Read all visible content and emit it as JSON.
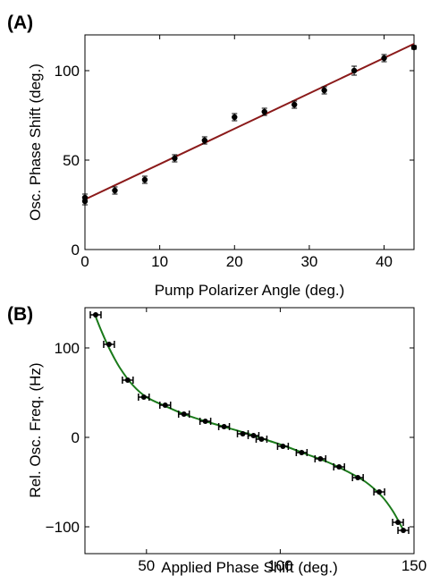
{
  "chart_data": [
    {
      "panel_label": "(A)",
      "type": "scatter",
      "xlabel": "Pump Polarizer Angle (deg.)",
      "ylabel": "Osc. Phase Shift (deg.)",
      "xlim": [
        0,
        44
      ],
      "ylim": [
        0,
        120
      ],
      "xticks": [
        0,
        10,
        20,
        30,
        40
      ],
      "yticks": [
        0,
        50,
        100
      ],
      "grid": false,
      "series": [
        {
          "kind": "points_with_y_errorbars",
          "color": "#000000",
          "points": [
            {
              "x": 0,
              "y": 27,
              "err": 2
            },
            {
              "x": 0,
              "y": 29,
              "err": 2
            },
            {
              "x": 4,
              "y": 33,
              "err": 2
            },
            {
              "x": 8,
              "y": 39,
              "err": 2
            },
            {
              "x": 12,
              "y": 51,
              "err": 2
            },
            {
              "x": 16,
              "y": 61,
              "err": 2
            },
            {
              "x": 20,
              "y": 74,
              "err": 2
            },
            {
              "x": 24,
              "y": 77,
              "err": 2
            },
            {
              "x": 28,
              "y": 81,
              "err": 2
            },
            {
              "x": 32,
              "y": 89,
              "err": 2
            },
            {
              "x": 36,
              "y": 100,
              "err": 2.5
            },
            {
              "x": 40,
              "y": 107,
              "err": 2
            },
            {
              "x": 44,
              "y": 113,
              "err": 1
            }
          ]
        },
        {
          "kind": "fit_line",
          "color": "#8b1a1a",
          "x": [
            0,
            44
          ],
          "y": [
            28,
            115
          ]
        }
      ]
    },
    {
      "panel_label": "(B)",
      "type": "scatter",
      "xlabel": "Applied Phase Shift (deg.)",
      "ylabel": "Rel. Osc. Freq. (Hz)",
      "xlim": [
        27,
        150
      ],
      "ylim": [
        -130,
        145
      ],
      "xticks": [
        50,
        100,
        150
      ],
      "yticks": [
        -100,
        0,
        100
      ],
      "grid": false,
      "series": [
        {
          "kind": "points_with_x_errorbars",
          "color": "#000000",
          "points": [
            {
              "x": 31,
              "y": 137,
              "err": 2
            },
            {
              "x": 36,
              "y": 104,
              "err": 2
            },
            {
              "x": 43,
              "y": 64,
              "err": 2
            },
            {
              "x": 49,
              "y": 45,
              "err": 2
            },
            {
              "x": 57,
              "y": 36,
              "err": 2
            },
            {
              "x": 64,
              "y": 26,
              "err": 2
            },
            {
              "x": 72,
              "y": 18,
              "err": 2
            },
            {
              "x": 79,
              "y": 12,
              "err": 2
            },
            {
              "x": 86,
              "y": 4,
              "err": 2
            },
            {
              "x": 90,
              "y": 2,
              "err": 2
            },
            {
              "x": 93,
              "y": -2,
              "err": 2
            },
            {
              "x": 101,
              "y": -10,
              "err": 2
            },
            {
              "x": 108,
              "y": -17,
              "err": 2
            },
            {
              "x": 115,
              "y": -24,
              "err": 2
            },
            {
              "x": 122,
              "y": -33,
              "err": 2
            },
            {
              "x": 129,
              "y": -45,
              "err": 2
            },
            {
              "x": 137,
              "y": -61,
              "err": 2
            },
            {
              "x": 144,
              "y": -95,
              "err": 2
            },
            {
              "x": 146,
              "y": -104,
              "err": 2
            }
          ]
        },
        {
          "kind": "fit_curve",
          "color": "#1a7a1a",
          "x": [
            31,
            33,
            36,
            40,
            45,
            50,
            57,
            64,
            72,
            80,
            88,
            95,
            102,
            110,
            118,
            125,
            132,
            138,
            142,
            145,
            146.5
          ],
          "y": [
            135,
            120,
            100,
            78,
            58,
            45,
            35,
            26,
            18,
            11,
            4,
            -3,
            -10,
            -19,
            -28,
            -38,
            -50,
            -66,
            -82,
            -98,
            -106
          ]
        }
      ]
    }
  ]
}
